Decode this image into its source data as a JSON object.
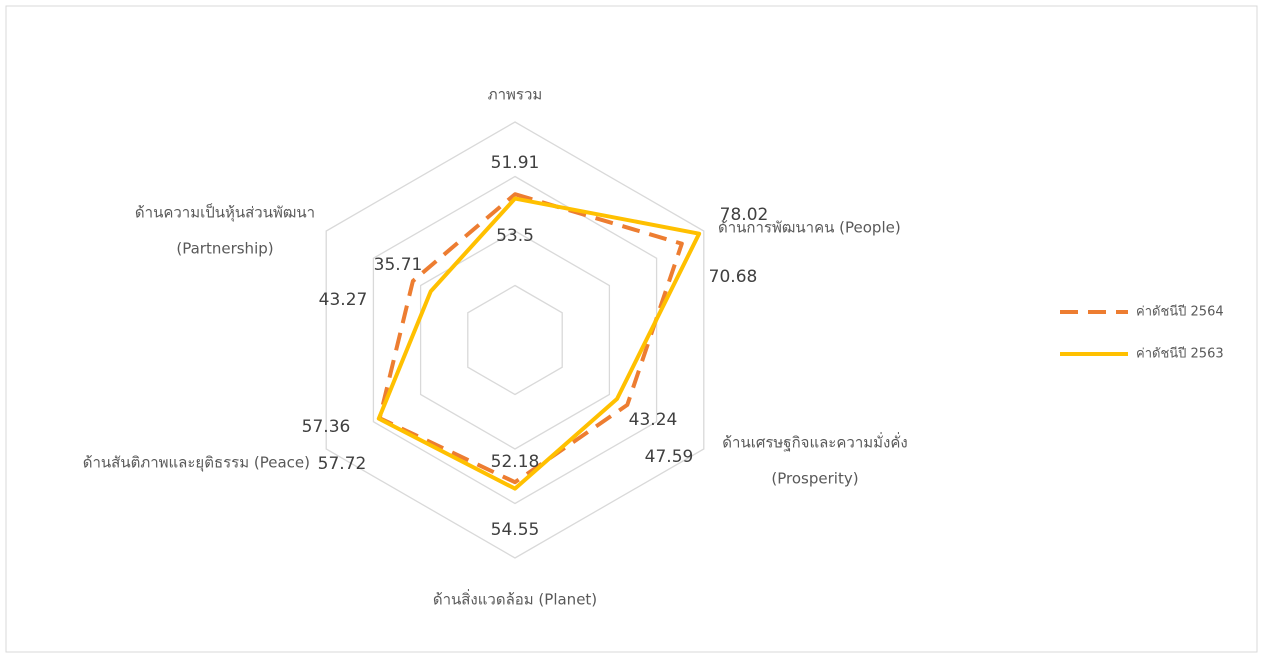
{
  "chart_data": {
    "type": "radar",
    "categories": [
      [
        "ภาพรวม"
      ],
      [
        "ด้านการพัฒนาคน (People)"
      ],
      [
        "ด้านเศรษฐกิจและความมั่งคั่ง",
        "(Prosperity)"
      ],
      [
        "ด้านสิ่งแวดล้อม (Planet)"
      ],
      [
        "ด้านสันติภาพและยุติธรรม (Peace)"
      ],
      [
        "ด้านความเป็นหุ้นส่วนพัฒนา",
        "(Partnership)"
      ]
    ],
    "series": [
      {
        "name": "ค่าดัชนีปี 2564",
        "color": "#ED7D31",
        "dash": true,
        "values": [
          53.5,
          70.68,
          47.59,
          52.18,
          57.36,
          43.27
        ]
      },
      {
        "name": "ค่าดัชนีปี 2563",
        "color": "#FFC000",
        "dash": false,
        "values": [
          51.91,
          78.02,
          43.24,
          54.55,
          57.72,
          35.71
        ]
      }
    ],
    "ylim": [
      0,
      80
    ],
    "yticks": [
      0,
      20,
      40,
      60,
      80
    ],
    "grid": true,
    "legend": "right"
  }
}
